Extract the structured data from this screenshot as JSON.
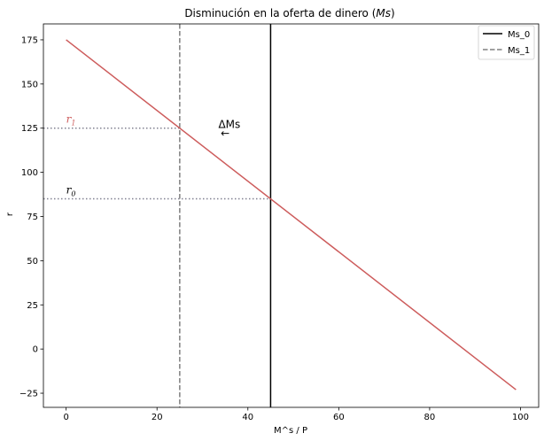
{
  "chart_data": {
    "type": "line",
    "title_main": "Disminución en la oferta de dinero (",
    "title_var": "Ms",
    "title_end": ")",
    "xlabel": "M^s / P",
    "ylabel": "r",
    "xlim": [
      -5,
      104
    ],
    "ylim": [
      -33,
      184
    ],
    "xticks": [
      0,
      20,
      40,
      60,
      80,
      100
    ],
    "yticks": [
      -25,
      0,
      25,
      50,
      75,
      100,
      125,
      150,
      175
    ],
    "demand_line": {
      "x": [
        0,
        99
      ],
      "y": [
        175,
        -23
      ],
      "color": "#cd5c5c"
    },
    "supply_lines": [
      {
        "name": "Ms_0",
        "x": 45,
        "color": "#000000",
        "style": "solid"
      },
      {
        "name": "Ms_1",
        "x": 25,
        "color": "#808080",
        "style": "dashed"
      }
    ],
    "rate_lines": [
      {
        "y": 125,
        "x_end": 25
      },
      {
        "y": 85,
        "x_end": 45
      }
    ],
    "annotations": {
      "r1": {
        "base": "r",
        "sub": "1",
        "x": 0,
        "y": 128,
        "color": "#cd5c5c"
      },
      "r0": {
        "base": "r",
        "sub": "0",
        "x": 0,
        "y": 88,
        "color": "#000000"
      },
      "delta_label": {
        "text": "ΔMs",
        "x": 33.5,
        "y": 125
      },
      "delta_arrow": {
        "text": "←",
        "x": 35,
        "y": 120
      }
    },
    "legend_position": "top-right"
  }
}
